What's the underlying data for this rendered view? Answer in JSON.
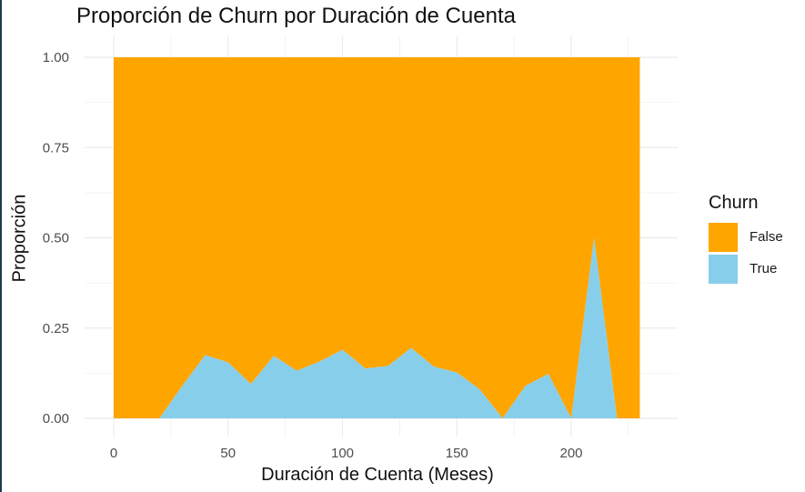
{
  "colors": {
    "false": "#FFA500",
    "true": "#87CEEB",
    "grid": "#ebebeb"
  },
  "chart_data": {
    "type": "area",
    "stacked": true,
    "normalized": true,
    "title": "Proporción de Churn por Duración de Cuenta",
    "xlabel": "Duración de Cuenta (Meses)",
    "ylabel": "Proporción",
    "xlim": [
      -8,
      238
    ],
    "ylim": [
      0,
      1
    ],
    "xticks": [
      "0",
      "50",
      "100",
      "150",
      "200"
    ],
    "yticks": [
      "0.00",
      "0.25",
      "0.50",
      "0.75",
      "1.00"
    ],
    "x": [
      0,
      10,
      20,
      30,
      40,
      50,
      60,
      70,
      80,
      90,
      100,
      110,
      120,
      130,
      140,
      150,
      160,
      170,
      180,
      190,
      200,
      210,
      220,
      230
    ],
    "series": [
      {
        "name": "False",
        "values": [
          1,
          1,
          1,
          0.91,
          0.825,
          0.845,
          0.905,
          0.827,
          0.868,
          0.843,
          0.81,
          0.862,
          0.855,
          0.805,
          0.857,
          0.873,
          0.92,
          1,
          0.91,
          0.877,
          1,
          0.5,
          1,
          1
        ]
      },
      {
        "name": "True",
        "values": [
          0,
          0,
          0,
          0.09,
          0.175,
          0.155,
          0.095,
          0.173,
          0.132,
          0.157,
          0.19,
          0.138,
          0.145,
          0.195,
          0.143,
          0.127,
          0.08,
          0,
          0.09,
          0.123,
          0,
          0.5,
          0,
          0
        ]
      }
    ],
    "legend": {
      "title": "Churn",
      "position": "right",
      "entries": [
        "False",
        "True"
      ]
    },
    "grid": true
  }
}
